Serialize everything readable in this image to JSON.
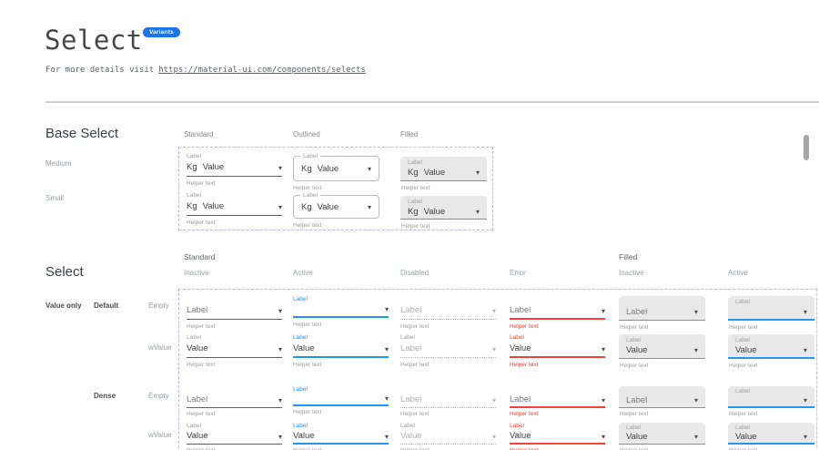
{
  "header": {
    "title": "Select",
    "badge": "Variants",
    "subtitle_prefix": "For more details visit",
    "subtitle_link": "https://material-ui.com/components/selects"
  },
  "base_select": {
    "heading": "Base Select",
    "column_headers": [
      "Standard",
      "Outlined",
      "Filled"
    ],
    "row_labels": [
      "Medium",
      "Small"
    ],
    "select": {
      "label": "Label",
      "adornment": "Kg",
      "value": "Value",
      "helper": "Helper text"
    }
  },
  "select_matrix": {
    "heading": "Select",
    "group_headers": [
      "Standard",
      "Filled"
    ],
    "state_headers": [
      "Inactive",
      "Active",
      "Disabled",
      "Error",
      "Inactive",
      "Active"
    ],
    "row_group_label": "Value only",
    "size_labels": [
      "Default",
      "Dense"
    ],
    "variant_labels": [
      "Empty",
      "wValue"
    ],
    "texts": {
      "helper": "Helper text"
    },
    "rows": [
      {
        "size": "default",
        "kind": "Empty",
        "cells": [
          {
            "variant": "standard",
            "state": "inactive",
            "label": "",
            "value": "Label",
            "tone": "placeholder"
          },
          {
            "variant": "standard",
            "state": "active",
            "label": "Label",
            "value": "",
            "tone": "value"
          },
          {
            "variant": "standard",
            "state": "disabled",
            "label": "",
            "value": "Label",
            "tone": "disabled"
          },
          {
            "variant": "standard",
            "state": "error",
            "label": "",
            "value": "Label",
            "tone": "placeholder"
          },
          {
            "variant": "filled",
            "state": "inactive",
            "label": "",
            "value": "Label",
            "tone": "placeholder"
          },
          {
            "variant": "filled",
            "state": "active",
            "label": "Label",
            "value": "",
            "tone": "value"
          }
        ]
      },
      {
        "size": "default",
        "kind": "wValue",
        "cells": [
          {
            "variant": "standard",
            "state": "inactive",
            "label": "Label",
            "value": "Value",
            "tone": "value"
          },
          {
            "variant": "standard",
            "state": "active",
            "label": "Label",
            "value": "Value",
            "tone": "value"
          },
          {
            "variant": "standard",
            "state": "disabled",
            "label": "Label",
            "value": "Label",
            "tone": "disabled"
          },
          {
            "variant": "standard",
            "state": "error",
            "label": "Label",
            "value": "Value",
            "tone": "value"
          },
          {
            "variant": "filled",
            "state": "inactive",
            "label": "Label",
            "value": "Value",
            "tone": "value"
          },
          {
            "variant": "filled",
            "state": "active",
            "label": "Label",
            "value": "Value",
            "tone": "value"
          }
        ]
      },
      {
        "size": "dense",
        "kind": "Empty",
        "cells": [
          {
            "variant": "standard",
            "state": "inactive",
            "label": "",
            "value": "Label",
            "tone": "placeholder"
          },
          {
            "variant": "standard",
            "state": "active",
            "label": "Label",
            "value": "",
            "tone": "value"
          },
          {
            "variant": "standard",
            "state": "disabled",
            "label": "",
            "value": "Label",
            "tone": "disabled"
          },
          {
            "variant": "standard",
            "state": "error",
            "label": "",
            "value": "Label",
            "tone": "placeholder"
          },
          {
            "variant": "filled",
            "state": "inactive",
            "label": "",
            "value": "Label",
            "tone": "placeholder"
          },
          {
            "variant": "filled",
            "state": "active",
            "label": "Label",
            "value": "",
            "tone": "value"
          }
        ]
      },
      {
        "size": "dense",
        "kind": "wValue",
        "cells": [
          {
            "variant": "standard",
            "state": "inactive",
            "label": "Label",
            "value": "Value",
            "tone": "value"
          },
          {
            "variant": "standard",
            "state": "active",
            "label": "Label",
            "value": "Value",
            "tone": "value"
          },
          {
            "variant": "standard",
            "state": "disabled",
            "label": "Label",
            "value": "Value",
            "tone": "disabled"
          },
          {
            "variant": "standard",
            "state": "error",
            "label": "Label",
            "value": "Value",
            "tone": "value"
          },
          {
            "variant": "filled",
            "state": "inactive",
            "label": "Label",
            "value": "Value",
            "tone": "value"
          },
          {
            "variant": "filled",
            "state": "active",
            "label": "Label",
            "value": "Value",
            "tone": "value"
          }
        ]
      }
    ]
  },
  "icons": {
    "dropdown": "▾"
  },
  "colors": {
    "primary": "#2196f3",
    "error": "#f44336",
    "badge": "#1a73e8",
    "filled": "#e9e9e9",
    "dash": "#b5b9ef"
  }
}
